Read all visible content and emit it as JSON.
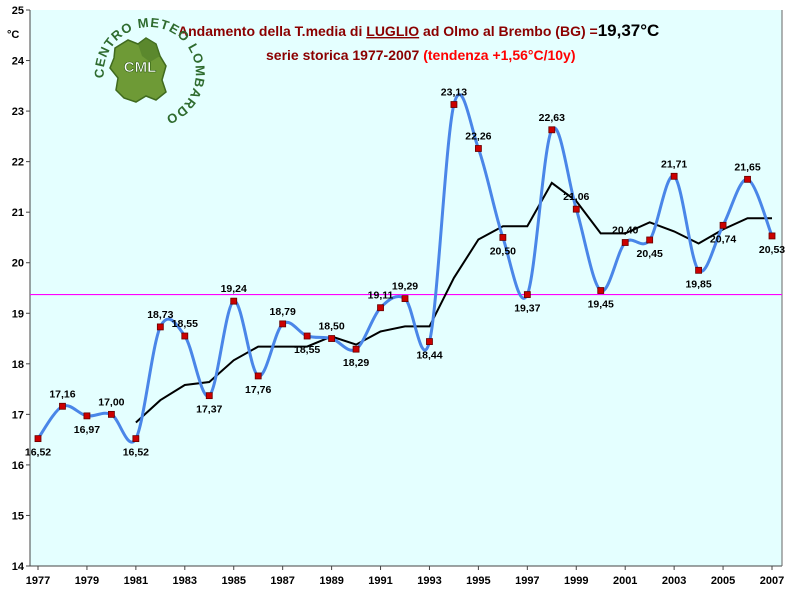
{
  "chart_data": {
    "type": "line",
    "title_parts": {
      "prefix": "Andamento della T.media di ",
      "month": "LUGLIO",
      "place": " ad Olmo al Brembo (BG) =",
      "mean_value": "19,37°C"
    },
    "subtitle_parts": {
      "series": "serie storica 1977-2007 ",
      "trend": "(tendenza +1,56°C/10y)"
    },
    "ylabel": "°C",
    "ylim": [
      14,
      25
    ],
    "yticks": [
      "14",
      "15",
      "16",
      "17",
      "18",
      "19",
      "20",
      "21",
      "22",
      "23",
      "24",
      "25"
    ],
    "xlim": [
      1977,
      2007
    ],
    "xticks": [
      "1977",
      "1979",
      "1981",
      "1983",
      "1985",
      "1987",
      "1989",
      "1991",
      "1993",
      "1995",
      "1997",
      "1999",
      "2001",
      "2003",
      "2005",
      "2007"
    ],
    "grid": false,
    "background": "#e4ffff",
    "series": [
      {
        "role": "annual",
        "color": "#4a86e8",
        "marker_color": "#cc0000",
        "x": [
          1977,
          1978,
          1979,
          1980,
          1981,
          1982,
          1983,
          1984,
          1985,
          1986,
          1987,
          1988,
          1989,
          1990,
          1991,
          1992,
          1993,
          1994,
          1995,
          1996,
          1997,
          1998,
          1999,
          2000,
          2001,
          2002,
          2003,
          2004,
          2005,
          2006,
          2007
        ],
        "values": [
          16.52,
          17.16,
          16.97,
          17.0,
          16.52,
          18.73,
          18.55,
          17.37,
          19.24,
          17.76,
          18.79,
          18.55,
          18.5,
          18.29,
          19.11,
          19.29,
          18.44,
          23.13,
          22.26,
          20.5,
          19.37,
          22.63,
          21.06,
          19.45,
          20.4,
          20.45,
          21.71,
          19.85,
          20.74,
          21.65,
          20.53
        ],
        "labels": [
          "16,52",
          "17,16",
          "16,97",
          "17,00",
          "16,52",
          "18,73",
          "18,55",
          "17,37",
          "19,24",
          "17,76",
          "18,79",
          "18,55",
          "18,50",
          "18,29",
          "19,11",
          "19,29",
          "18,44",
          "23,13",
          "22,26",
          "20,50",
          "19,37",
          "22,63",
          "21,06",
          "19,45",
          "20,40",
          "20,45",
          "21,71",
          "19,85",
          "20,74",
          "21,65",
          "20,53"
        ]
      },
      {
        "role": "moving_average",
        "color": "#000000",
        "x": [
          1981,
          1982,
          1983,
          1984,
          1985,
          1986,
          1987,
          1988,
          1989,
          1990,
          1991,
          1992,
          1993,
          1994,
          1995,
          1996,
          1997,
          1998,
          1999,
          2000,
          2001,
          2002,
          2003,
          2004,
          2005,
          2006,
          2007
        ],
        "values": [
          16.84,
          17.28,
          17.58,
          17.64,
          18.07,
          18.34,
          18.34,
          18.34,
          18.54,
          18.38,
          18.64,
          18.74,
          18.74,
          19.7,
          20.46,
          20.72,
          20.72,
          21.58,
          21.22,
          20.58,
          20.58,
          20.8,
          20.62,
          20.38,
          20.66,
          20.88,
          20.88
        ]
      },
      {
        "role": "mean_line",
        "color": "#ff00ff",
        "value": 19.37
      }
    ]
  },
  "logo": {
    "arc_text": "CENTRO METEO LOMBARDO",
    "initials": "CML",
    "colors": {
      "map": "#6e9a36",
      "map_dark": "#3f6a1e",
      "initials": "#ffffff",
      "arc": "#2e6b2e"
    }
  }
}
